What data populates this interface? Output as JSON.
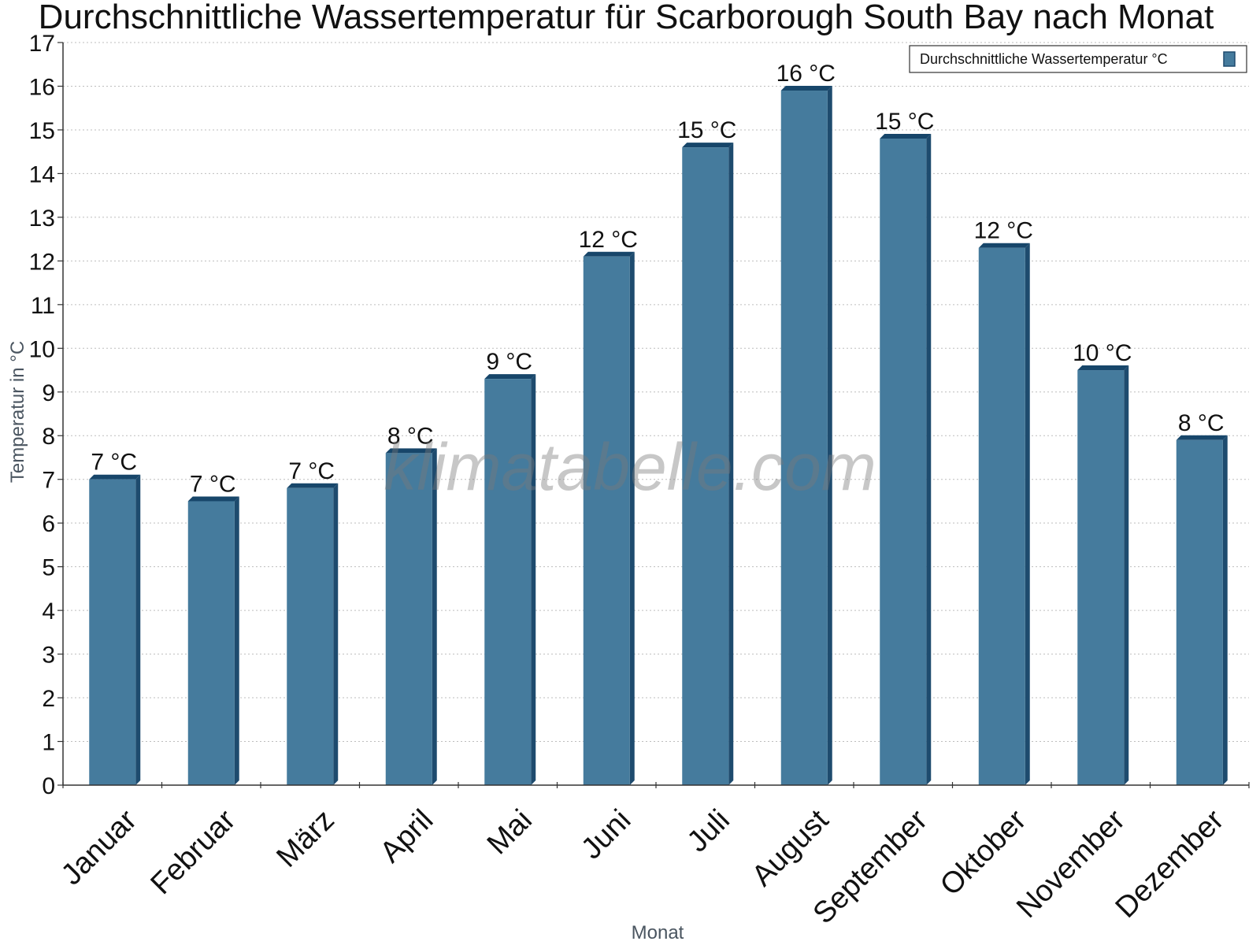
{
  "chart_data": {
    "type": "bar",
    "title": "Durchschnittliche Wassertemperatur für Scarborough South Bay nach Monat",
    "xlabel": "Monat",
    "ylabel": "Temperatur in °C",
    "categories": [
      "Januar",
      "Februar",
      "März",
      "April",
      "Mai",
      "Juni",
      "Juli",
      "August",
      "September",
      "Oktober",
      "November",
      "Dezember"
    ],
    "series": [
      {
        "name": "Durchschnittliche Wassertemperatur °C",
        "values": [
          7.0,
          6.5,
          6.8,
          7.6,
          9.3,
          12.1,
          14.6,
          15.9,
          14.8,
          12.3,
          9.5,
          7.9
        ],
        "labels": [
          "7 °C",
          "7 °C",
          "7 °C",
          "8 °C",
          "9 °C",
          "12 °C",
          "15 °C",
          "16 °C",
          "15 °C",
          "12 °C",
          "10 °C",
          "8 °C"
        ],
        "color": "#457b9d"
      }
    ],
    "ylim": [
      0,
      17
    ],
    "yticks": [
      "0",
      "1",
      "2",
      "3",
      "4",
      "5",
      "6",
      "7",
      "8",
      "9",
      "10",
      "11",
      "12",
      "13",
      "14",
      "15",
      "16",
      "17"
    ],
    "grid": true,
    "legend": "top-right"
  },
  "watermark": "klimatabelle.com",
  "colors": {
    "bar": "#457b9d",
    "bar_side": "#1e4b6e",
    "bar_top": "#17466a"
  }
}
